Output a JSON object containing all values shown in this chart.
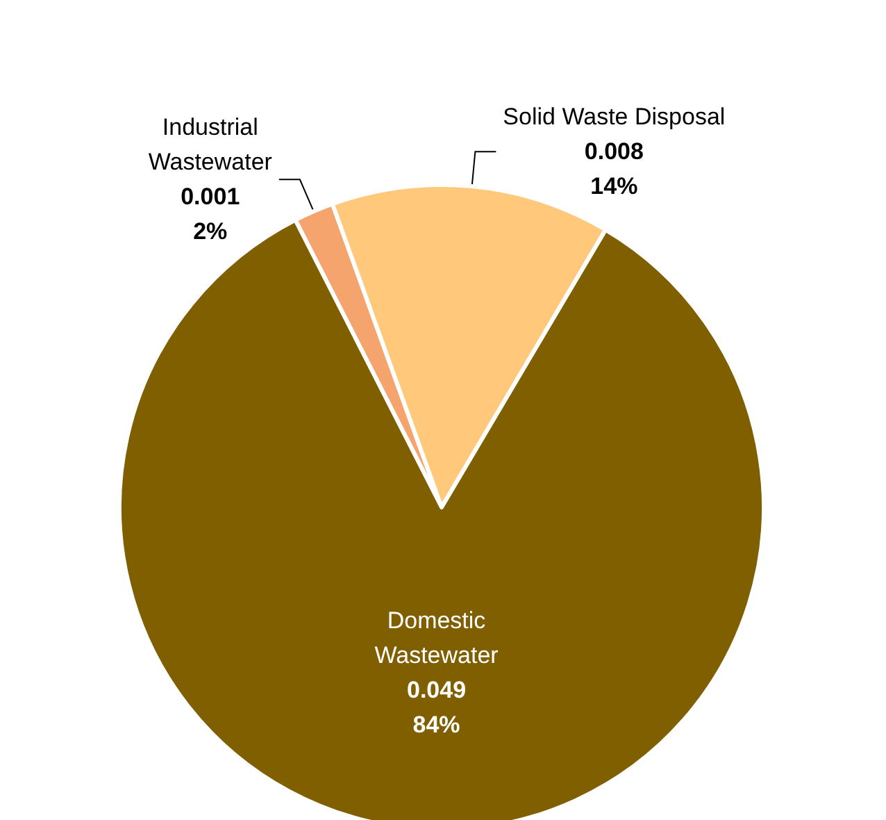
{
  "chart_data": {
    "type": "pie",
    "categories": [
      "Industrial Wastewater",
      "Solid Waste Disposal",
      "Domestic Wastewater"
    ],
    "values": [
      2,
      14,
      84
    ],
    "colors": [
      "#f4a46c",
      "#ffc87a",
      "#7f5f00"
    ],
    "value_labels": [
      "0.001\n2%",
      "0.008\n14%",
      "0.049\n84%"
    ],
    "legend": false
  }
}
